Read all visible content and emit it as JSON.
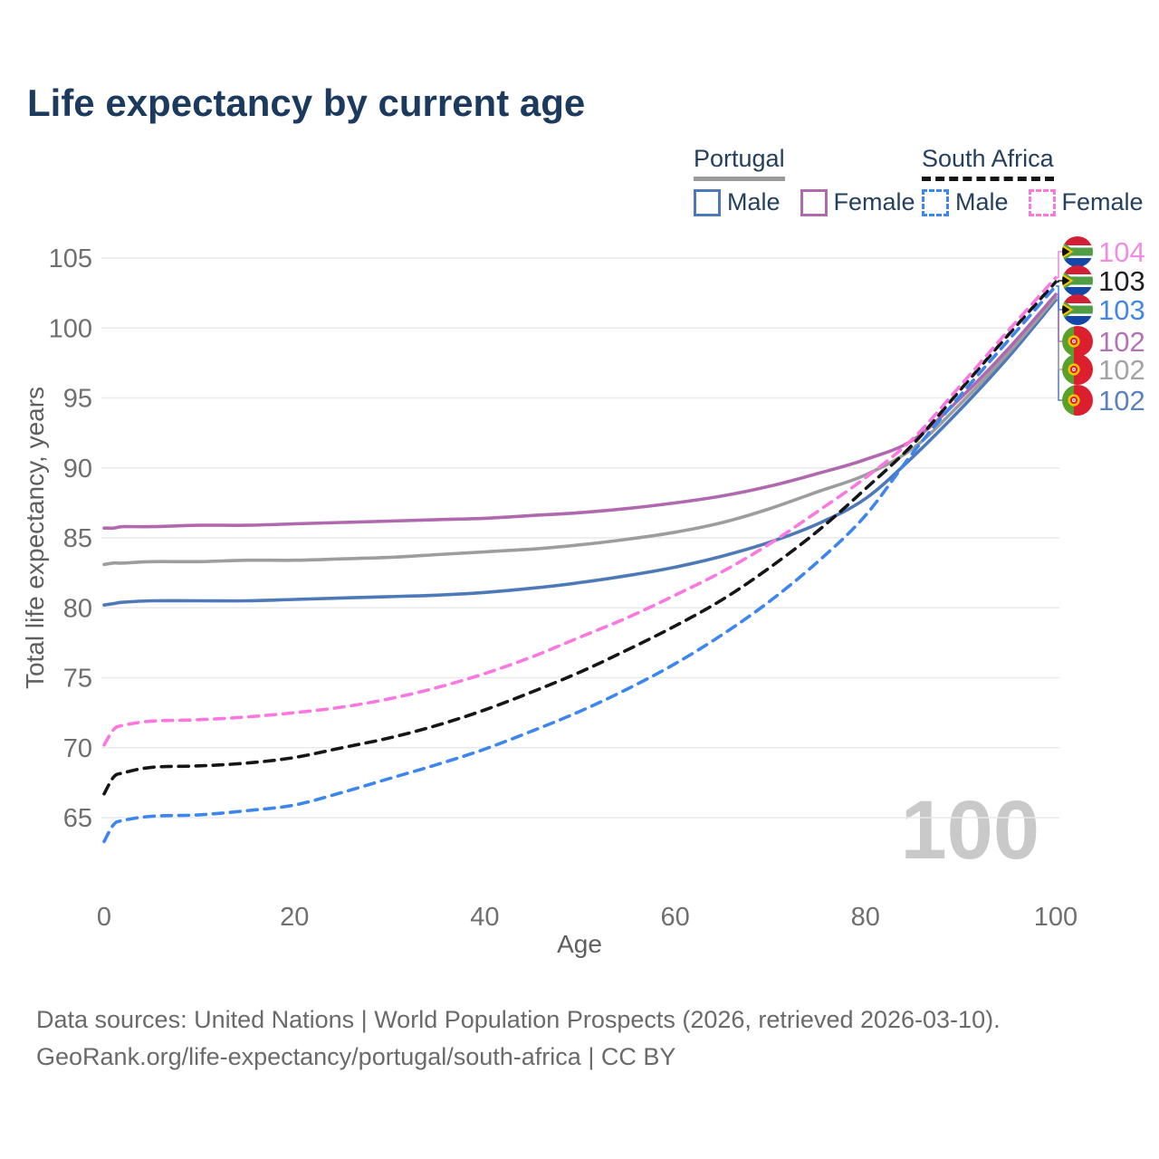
{
  "title": "Life expectancy by current age",
  "legend": {
    "portugal": {
      "label": "Portugal",
      "male_label": "Male",
      "female_label": "Female"
    },
    "south_africa": {
      "label": "South Africa",
      "male_label": "Male",
      "female_label": "Female"
    }
  },
  "watermark": "100",
  "footer": {
    "line1": "Data sources: United Nations | World Population Prospects (2026, retrieved 2026-03-10).",
    "line2": "GeoRank.org/life-expectancy/portugal/south-africa | CC BY"
  },
  "chart_data": {
    "type": "line",
    "title": "Life expectancy by current age",
    "xlabel": "Age",
    "ylabel": "Total life expectancy, years",
    "xlim": [
      0,
      100
    ],
    "ylim": [
      62.5,
      106
    ],
    "xticks": [
      0,
      20,
      40,
      60,
      80,
      100
    ],
    "yticks": [
      65,
      70,
      75,
      80,
      85,
      90,
      95,
      100,
      105
    ],
    "grid": "horizontal-only",
    "legend_position": "top-right",
    "x": [
      0,
      1,
      2,
      5,
      10,
      15,
      20,
      25,
      30,
      35,
      40,
      45,
      50,
      55,
      60,
      65,
      70,
      75,
      80,
      85,
      90,
      95,
      100
    ],
    "series": [
      {
        "name": "Portugal Male",
        "country": "portugal",
        "sex": "male",
        "color": "#4d79b8",
        "dashed": false,
        "values": [
          80.2,
          80.3,
          80.4,
          80.5,
          80.5,
          80.5,
          80.6,
          80.7,
          80.8,
          80.9,
          81.1,
          81.4,
          81.8,
          82.3,
          82.9,
          83.7,
          84.7,
          86.0,
          87.8,
          90.8,
          94.2,
          97.9,
          102.0
        ],
        "end_label": "102",
        "end_label_color": "#5b82be",
        "end_label_row_y": 442
      },
      {
        "name": "Portugal Both sexes",
        "country": "portugal",
        "sex": "all",
        "color": "#9d9d9d",
        "dashed": false,
        "values": [
          83.1,
          83.2,
          83.2,
          83.3,
          83.3,
          83.4,
          83.4,
          83.5,
          83.6,
          83.8,
          84.0,
          84.2,
          84.5,
          84.9,
          85.4,
          86.1,
          87.1,
          88.3,
          89.5,
          91.4,
          94.6,
          98.2,
          102.2
        ],
        "end_label": "102",
        "end_label_color": "#a3a3a3",
        "end_label_row_y": 408
      },
      {
        "name": "Portugal Female",
        "country": "portugal",
        "sex": "female",
        "color": "#b069ae",
        "dashed": false,
        "values": [
          85.7,
          85.7,
          85.8,
          85.8,
          85.9,
          85.9,
          86.0,
          86.1,
          86.2,
          86.3,
          86.4,
          86.6,
          86.8,
          87.1,
          87.5,
          88.0,
          88.7,
          89.6,
          90.6,
          92.0,
          95.0,
          98.5,
          102.4
        ],
        "end_label": "102",
        "end_label_color": "#b273b6",
        "end_label_row_y": 377
      },
      {
        "name": "South Africa Male",
        "country": "south-africa",
        "sex": "male",
        "color": "#3d86f0",
        "dashed": true,
        "values": [
          63.3,
          64.5,
          64.8,
          65.1,
          65.2,
          65.5,
          65.9,
          66.8,
          67.8,
          68.8,
          69.9,
          71.2,
          72.6,
          74.2,
          76.0,
          78.1,
          80.5,
          83.3,
          86.6,
          91.1,
          95.2,
          99.1,
          103.0
        ],
        "end_label": "103",
        "end_label_color": "#4486e8",
        "end_label_row_y": 342
      },
      {
        "name": "South Africa Both sexes",
        "country": "south-africa",
        "sex": "all",
        "color": "#161616",
        "dashed": true,
        "values": [
          66.7,
          67.9,
          68.2,
          68.6,
          68.7,
          68.9,
          69.3,
          70.0,
          70.7,
          71.6,
          72.7,
          74.0,
          75.4,
          77.0,
          78.7,
          80.6,
          82.9,
          85.5,
          88.5,
          91.7,
          95.6,
          99.5,
          103.3
        ],
        "end_label": "103",
        "end_label_color": "#1f1f1f",
        "end_label_row_y": 310
      },
      {
        "name": "South Africa Female",
        "country": "south-africa",
        "sex": "female",
        "color": "#fb78e0",
        "dashed": true,
        "values": [
          70.2,
          71.3,
          71.6,
          71.9,
          72.0,
          72.2,
          72.5,
          72.9,
          73.5,
          74.3,
          75.3,
          76.5,
          77.9,
          79.3,
          80.9,
          82.6,
          84.6,
          86.9,
          89.3,
          92.1,
          95.9,
          99.8,
          103.6
        ],
        "end_label": "104",
        "end_label_color": "#f18ce0",
        "end_label_row_y": 278
      }
    ],
    "annotations": {
      "age_counter_watermark": "100"
    },
    "colors": {
      "grid": "#eaeaea",
      "tick_text": "#6f6f6f",
      "axis_title_text": "#5f5f5f",
      "watermark": "#c9c9c9",
      "page_title": "#1b3a5e",
      "legend_text": "#24405e",
      "portugal_underline": "#9a9a9a",
      "south_africa_underline": "#161616"
    }
  }
}
